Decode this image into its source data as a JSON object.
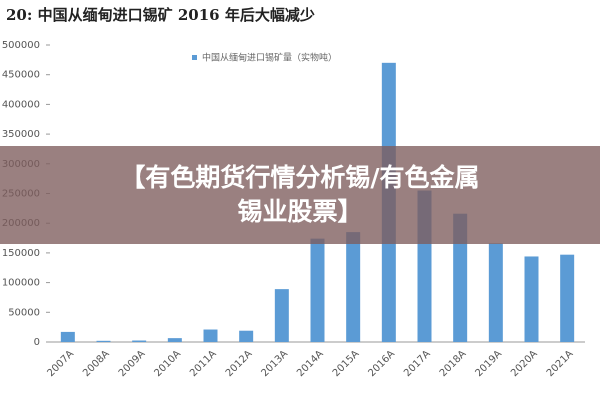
{
  "chart_data": {
    "type": "bar",
    "title": "20:  中国从缅甸进口锡矿 2016 年后大幅减少",
    "legend": "中国从缅甸进口锡矿量（实物吨）",
    "categories": [
      "2007A",
      "2008A",
      "2009A",
      "2010A",
      "2011A",
      "2012A",
      "2013A",
      "2014A",
      "2015A",
      "2016A",
      "2017A",
      "2018A",
      "2019A",
      "2020A",
      "2021A"
    ],
    "values": [
      17000,
      2000,
      2500,
      6500,
      21000,
      19000,
      89000,
      174000,
      185000,
      470000,
      255000,
      216000,
      166000,
      144000,
      147000
    ],
    "color": "#5b9bd5",
    "ylim": [
      0,
      500000
    ],
    "yticks": [
      0,
      50000,
      100000,
      150000,
      200000,
      250000,
      300000,
      350000,
      400000,
      450000,
      500000
    ]
  },
  "banner": {
    "lines": [
      "【有色期货行情分析锡/有色金属",
      "锡业股票】"
    ]
  }
}
